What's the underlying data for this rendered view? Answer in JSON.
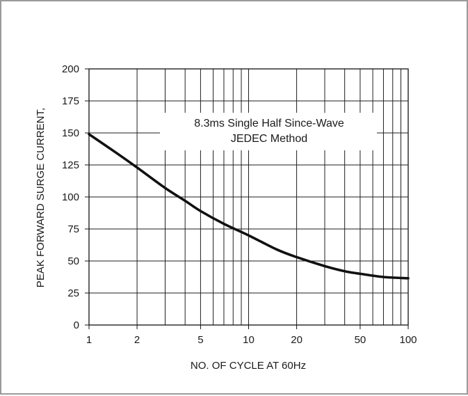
{
  "chart_data": {
    "type": "line",
    "title": "",
    "xlabel": "NO. OF CYCLE AT 60Hz",
    "ylabel": "PEAK FORWARD SURGE CURRENT,",
    "x_scale": "log",
    "xlim": [
      1,
      100
    ],
    "ylim": [
      0,
      200
    ],
    "x_ticks": [
      1,
      2,
      5,
      10,
      20,
      50,
      100
    ],
    "x_tick_labels": [
      "1",
      "2",
      "5",
      "10",
      "20",
      "50",
      "100"
    ],
    "y_ticks": [
      0,
      25,
      50,
      75,
      100,
      125,
      150,
      175,
      200
    ],
    "y_tick_labels": [
      "0",
      "25",
      "50",
      "75",
      "100",
      "125",
      "150",
      "175",
      "200"
    ],
    "grid": true,
    "annotation": {
      "lines": [
        "8.3ms Single Half Since-Wave",
        "JEDEC Method"
      ]
    },
    "series": [
      {
        "x": [
          1,
          1.5,
          2,
          3,
          4,
          5,
          7,
          10,
          15,
          20,
          30,
          40,
          50,
          70,
          100
        ],
        "y": [
          149,
          134,
          123,
          107,
          97,
          89,
          79,
          70,
          59,
          53,
          46,
          42,
          40,
          37.5,
          36.5
        ],
        "color": "#111111"
      }
    ]
  }
}
